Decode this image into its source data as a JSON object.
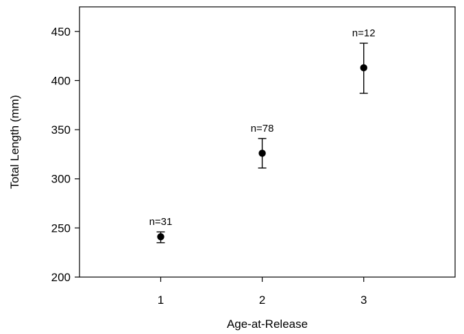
{
  "chart_data": {
    "type": "scatter",
    "title": "",
    "xlabel": "Age-at-Release",
    "ylabel": "Total Length (mm)",
    "xlim": [
      0.2,
      3.9
    ],
    "ylim": [
      200,
      475
    ],
    "xticks": [
      1,
      2,
      3
    ],
    "yticks": [
      200,
      250,
      300,
      350,
      400,
      450
    ],
    "grid": false,
    "legend": "none",
    "marker_color": "#000000",
    "points": [
      {
        "x": 1,
        "y": 241,
        "err_low": 235,
        "err_high": 246,
        "annotation": "n=31"
      },
      {
        "x": 2,
        "y": 326,
        "err_low": 311,
        "err_high": 341,
        "annotation": "n=78"
      },
      {
        "x": 3,
        "y": 413,
        "err_low": 387,
        "err_high": 438,
        "annotation": "n=12"
      }
    ]
  }
}
